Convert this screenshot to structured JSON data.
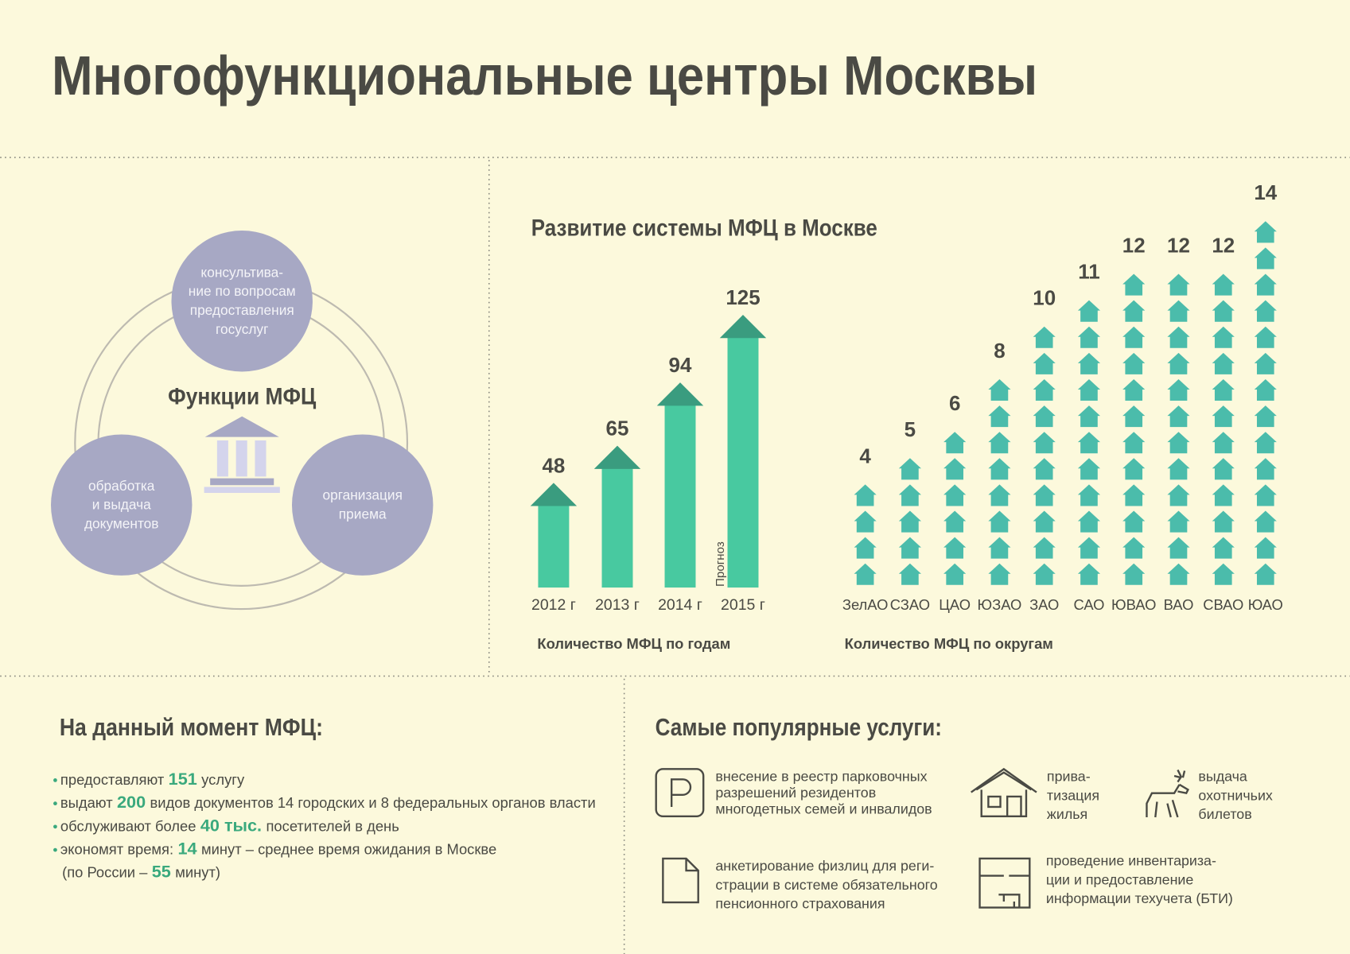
{
  "title": "Многофункциональные центры Москвы",
  "functions": {
    "title": "Функции МФЦ",
    "items": [
      [
        "консультива-",
        "ние по вопросам",
        "предоставления",
        "госуслуг"
      ],
      [
        "обработка",
        "и выдача",
        "документов"
      ],
      [
        "организация",
        "приема"
      ]
    ]
  },
  "section_title": "Развитие системы МФЦ в Москве",
  "chart_data": [
    {
      "type": "arrow-bar",
      "categories": [
        "2012 г",
        "2013 г",
        "2014 г",
        "2015 г"
      ],
      "values": [
        48,
        65,
        94,
        125
      ],
      "note": "Прогноз",
      "caption": "Количество МФЦ по годам",
      "color": "#48c9a0",
      "head_color": "#3a9c7f"
    },
    {
      "type": "pictogram",
      "categories": [
        "ЗелАО",
        "СЗАО",
        "ЦАО",
        "ЮЗАО",
        "ЗАО",
        "САО",
        "ЮВАО",
        "ВАО",
        "СВАО",
        "ЮАО"
      ],
      "values": [
        4,
        5,
        6,
        8,
        10,
        11,
        12,
        12,
        12,
        14
      ],
      "caption": "Количество МФЦ по округам",
      "color": "#4bbcab"
    }
  ],
  "current": {
    "title": "На данный момент МФЦ:",
    "items": [
      [
        "предоставляют",
        "151",
        "услугу"
      ],
      [
        "выдают",
        "200",
        "видов документов 14 городских и 8 федеральных органов власти"
      ],
      [
        "обслуживают более",
        "40 тыс.",
        "посетителей в день"
      ],
      [
        "экономят время:",
        "14",
        "минут – среднее время ожидания в Москве"
      ]
    ],
    "note": [
      "(по России –",
      "55",
      "минут)"
    ]
  },
  "popular": {
    "title": "Самые популярные услуги:",
    "items": [
      [
        "внесение в реестр парковочных",
        "разрешений резидентов",
        "многодетных семей и инвалидов"
      ],
      [
        "прива-",
        "тизация",
        "жилья"
      ],
      [
        "выдача",
        "охотничьих",
        "билетов"
      ],
      [
        "анкетирование физлиц для реги-",
        "страции в системе обязательного",
        "пенсионного страхования"
      ],
      [
        "проведение инвентариза-",
        "ции и предоставление",
        "информации техучета (БТИ)"
      ]
    ]
  }
}
